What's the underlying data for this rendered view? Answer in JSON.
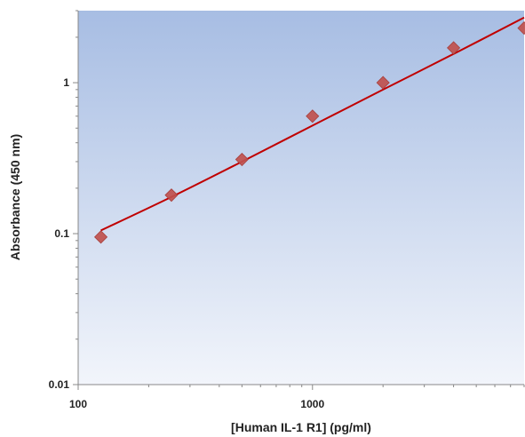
{
  "chart_data": {
    "type": "scatter",
    "title": "",
    "xlabel": "[Human IL-1 R1] (pg/ml)",
    "ylabel": "Absorbance (450 nm)",
    "x_scale": "log",
    "y_scale": "log",
    "xlim": [
      100,
      8000
    ],
    "ylim": [
      0.01,
      3
    ],
    "x_ticks": [
      {
        "value": 100,
        "label": "100"
      },
      {
        "value": 1000,
        "label": "1000"
      }
    ],
    "y_ticks": [
      {
        "value": 0.01,
        "label": "0.01"
      },
      {
        "value": 0.1,
        "label": "0.1"
      },
      {
        "value": 1,
        "label": "1"
      }
    ],
    "grid": false,
    "legend": "none",
    "series": [
      {
        "type": "scatter",
        "marker": "diamond",
        "color": "#c0504d",
        "points": [
          {
            "x": 125,
            "y": 0.095
          },
          {
            "x": 250,
            "y": 0.18
          },
          {
            "x": 500,
            "y": 0.31
          },
          {
            "x": 1000,
            "y": 0.6
          },
          {
            "x": 2000,
            "y": 1.0
          },
          {
            "x": 4000,
            "y": 1.7
          },
          {
            "x": 8000,
            "y": 2.3
          }
        ]
      },
      {
        "type": "line",
        "style": "fit",
        "color": "#c00000",
        "points": [
          {
            "x": 125,
            "y": 0.105
          },
          {
            "x": 250,
            "y": 0.175
          },
          {
            "x": 500,
            "y": 0.3
          },
          {
            "x": 1000,
            "y": 0.52
          },
          {
            "x": 2000,
            "y": 0.9
          },
          {
            "x": 4000,
            "y": 1.55
          },
          {
            "x": 8000,
            "y": 2.7
          }
        ]
      }
    ],
    "colors": {
      "plot_bg_top": "#a7bde3",
      "plot_bg_bottom": "#f2f5fb",
      "marker": "#c0504d",
      "fit_line": "#c00000"
    }
  }
}
